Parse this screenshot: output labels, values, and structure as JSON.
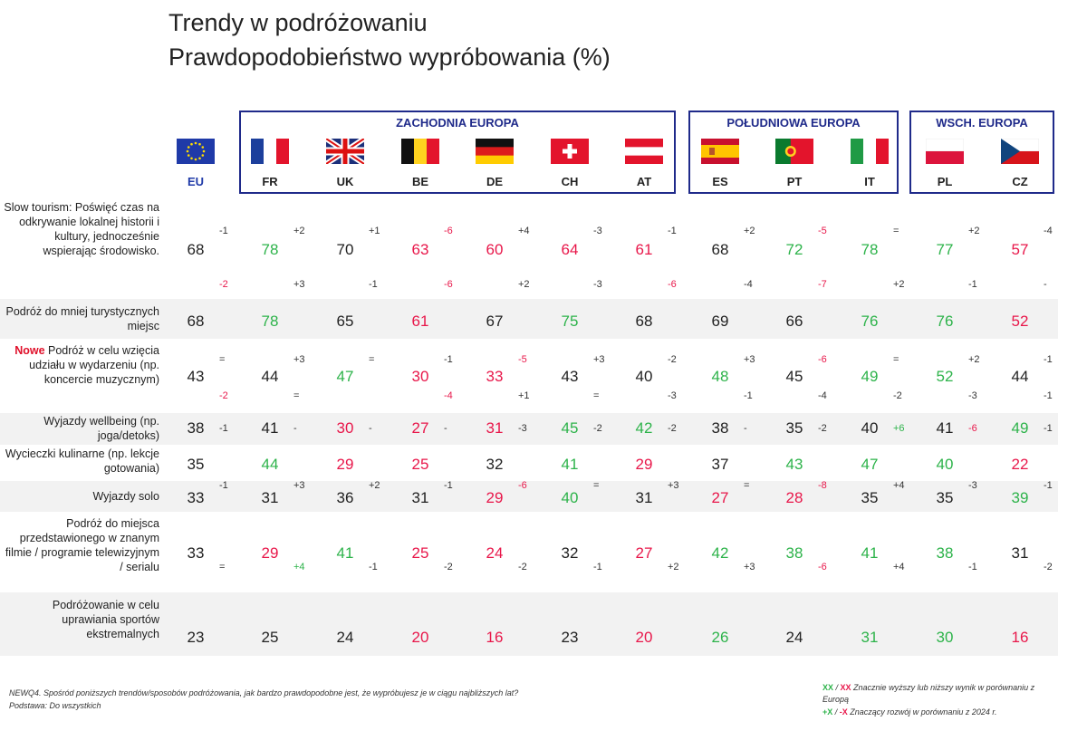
{
  "title": {
    "line1": "Trendy w podróżowaniu",
    "line2": "Prawdopodobieństwo wypróbowania (%)"
  },
  "regions": [
    {
      "label": "ZACHODNIA EUROPA"
    },
    {
      "label": "POŁUDNIOWA EUROPA"
    },
    {
      "label": "WSCH. EUROPA"
    }
  ],
  "colors": {
    "high": "#2db34a",
    "low": "#e8174a",
    "region": "#1f2a8a"
  },
  "chart_data": {
    "type": "table",
    "countries": [
      "EU",
      "FR",
      "UK",
      "BE",
      "DE",
      "CH",
      "AT",
      "ES",
      "PT",
      "IT",
      "PL",
      "CZ"
    ],
    "flags": [
      "eu-flag",
      "france-flag",
      "uk-flag",
      "belgium-flag",
      "germany-flag",
      "switzerland-flag",
      "austria-flag",
      "spain-flag",
      "portugal-flag",
      "italy-flag",
      "poland-flag",
      "czechia-flag"
    ],
    "rows": [
      {
        "label_new": "",
        "label": "Slow tourism: Poświęć czas na odkrywanie lokalnej historii i kultury, jednocześnie wspierając środowisko.",
        "values": [
          68,
          78,
          70,
          63,
          60,
          64,
          61,
          68,
          72,
          78,
          77,
          57
        ],
        "status": [
          "n",
          "h",
          "n",
          "l",
          "l",
          "l",
          "l",
          "n",
          "h",
          "h",
          "h",
          "l"
        ],
        "change_a": [
          "-1",
          "+2",
          "+1",
          "-6",
          "+4",
          "-3",
          "-1",
          "+2",
          "-5",
          "=",
          "+2",
          "-4"
        ],
        "change_a_status": [
          "n",
          "n",
          "n",
          "l",
          "n",
          "n",
          "n",
          "n",
          "l",
          "n",
          "n",
          "n"
        ],
        "change_b": [
          "-2",
          "+3",
          "-1",
          "-6",
          "+2",
          "-3",
          "-6",
          "-4",
          "-7",
          "+2",
          "-1",
          "-"
        ],
        "change_b_status": [
          "l",
          "n",
          "n",
          "l",
          "n",
          "n",
          "l",
          "n",
          "l",
          "n",
          "n",
          "n"
        ]
      },
      {
        "label_new": "",
        "label": "Podróż do mniej turystycznych miejsc",
        "values": [
          68,
          78,
          65,
          61,
          67,
          75,
          68,
          69,
          66,
          76,
          76,
          52
        ],
        "status": [
          "n",
          "h",
          "n",
          "l",
          "n",
          "h",
          "n",
          "n",
          "n",
          "h",
          "h",
          "l"
        ],
        "change_a": [
          "",
          "",
          "",
          "",
          "",
          "",
          "",
          "",
          "",
          "",
          "",
          ""
        ],
        "change_a_status": [
          "n",
          "n",
          "n",
          "n",
          "n",
          "n",
          "n",
          "n",
          "n",
          "n",
          "n",
          "n"
        ],
        "change_b": [
          "",
          "",
          "",
          "",
          "",
          "",
          "",
          "",
          "",
          "",
          "",
          ""
        ],
        "change_b_status": [
          "n",
          "n",
          "n",
          "n",
          "n",
          "n",
          "n",
          "n",
          "n",
          "n",
          "n",
          "n"
        ]
      },
      {
        "label_new": "Nowe",
        "label": " Podróż w celu wzięcia udziału w wydarzeniu (np. koncercie muzycznym)",
        "values": [
          43,
          44,
          47,
          30,
          33,
          43,
          40,
          48,
          45,
          49,
          52,
          44
        ],
        "status": [
          "n",
          "n",
          "h",
          "l",
          "l",
          "n",
          "n",
          "h",
          "n",
          "h",
          "h",
          "n"
        ],
        "change_a": [
          "=",
          "+3",
          "=",
          "-1",
          "-5",
          "+3",
          "-2",
          "+3",
          "-6",
          "=",
          "+2",
          "-1"
        ],
        "change_a_status": [
          "n",
          "n",
          "n",
          "n",
          "l",
          "n",
          "n",
          "n",
          "l",
          "n",
          "n",
          "n"
        ],
        "change_b": [
          "-2",
          "=",
          "",
          "-4",
          "+1",
          "=",
          "-3",
          "-1",
          "-4",
          "-2",
          "-3",
          "-1"
        ],
        "change_b_status": [
          "l",
          "n",
          "n",
          "l",
          "n",
          "n",
          "n",
          "n",
          "n",
          "n",
          "n",
          "n"
        ]
      },
      {
        "label_new": "",
        "label": "Wyjazdy wellbeing (np. joga/detoks)",
        "values": [
          38,
          41,
          30,
          27,
          31,
          45,
          42,
          38,
          35,
          40,
          41,
          49
        ],
        "status": [
          "n",
          "n",
          "l",
          "l",
          "l",
          "h",
          "h",
          "n",
          "n",
          "n",
          "n",
          "h"
        ],
        "change_a": [
          "-1",
          "-",
          "-",
          "-",
          "-3",
          "-2",
          "-2",
          "-",
          "-2",
          "+6",
          "-6",
          "-1"
        ],
        "change_a_status": [
          "n",
          "n",
          "n",
          "n",
          "n",
          "n",
          "n",
          "n",
          "n",
          "h",
          "l",
          "n"
        ],
        "change_b": [
          "",
          "",
          "",
          "",
          "",
          "",
          "",
          "",
          "",
          "",
          "",
          ""
        ],
        "change_b_status": [
          "n",
          "n",
          "n",
          "n",
          "n",
          "n",
          "n",
          "n",
          "n",
          "n",
          "n",
          "n"
        ]
      },
      {
        "label_new": "",
        "label": "Wycieczki kulinarne (np. lekcje gotowania)",
        "values": [
          35,
          44,
          29,
          25,
          32,
          41,
          29,
          37,
          43,
          47,
          40,
          22
        ],
        "status": [
          "n",
          "h",
          "l",
          "l",
          "n",
          "h",
          "l",
          "n",
          "h",
          "h",
          "h",
          "l"
        ],
        "change_a": [
          "",
          "",
          "",
          "",
          "",
          "",
          "",
          "",
          "",
          "",
          "",
          ""
        ],
        "change_a_status": [
          "n",
          "n",
          "n",
          "n",
          "n",
          "n",
          "n",
          "n",
          "n",
          "n",
          "n",
          "n"
        ],
        "change_b": [
          "",
          "",
          "",
          "",
          "",
          "",
          "",
          "",
          "",
          "",
          "",
          ""
        ],
        "change_b_status": [
          "n",
          "n",
          "n",
          "n",
          "n",
          "n",
          "n",
          "n",
          "n",
          "n",
          "n",
          "n"
        ]
      },
      {
        "label_new": "",
        "label": "Wyjazdy solo",
        "values": [
          33,
          31,
          36,
          31,
          29,
          40,
          31,
          27,
          28,
          35,
          35,
          39
        ],
        "status": [
          "n",
          "n",
          "n",
          "n",
          "l",
          "h",
          "n",
          "l",
          "l",
          "n",
          "n",
          "h"
        ],
        "change_a": [
          "-1",
          "+3",
          "+2",
          "-1",
          "-6",
          "=",
          "+3",
          "=",
          "-8",
          "+4",
          "-3",
          "-1"
        ],
        "change_a_status": [
          "n",
          "n",
          "n",
          "n",
          "l",
          "n",
          "n",
          "n",
          "l",
          "n",
          "n",
          "n"
        ],
        "change_b": [
          "",
          "",
          "",
          "",
          "",
          "",
          "",
          "",
          "",
          "",
          "",
          ""
        ],
        "change_b_status": [
          "n",
          "n",
          "n",
          "n",
          "n",
          "n",
          "n",
          "n",
          "n",
          "n",
          "n",
          "n"
        ]
      },
      {
        "label_new": "",
        "label": "Podróż do miejsca przedstawionego w znanym filmie / programie telewizyjnym / serialu",
        "values": [
          33,
          29,
          41,
          25,
          24,
          32,
          27,
          42,
          38,
          41,
          38,
          31
        ],
        "status": [
          "n",
          "l",
          "h",
          "l",
          "l",
          "n",
          "l",
          "h",
          "h",
          "h",
          "h",
          "n"
        ],
        "change_a": [
          "",
          "",
          "",
          "",
          "",
          "",
          "",
          "",
          "",
          "",
          "",
          ""
        ],
        "change_a_status": [
          "n",
          "n",
          "n",
          "n",
          "n",
          "n",
          "n",
          "n",
          "n",
          "n",
          "n",
          "n"
        ],
        "change_b": [
          "=",
          "+4",
          "-1",
          "-2",
          "-2",
          "-1",
          "+2",
          "+3",
          "-6",
          "+4",
          "-1",
          "-2"
        ],
        "change_b_status": [
          "n",
          "h",
          "n",
          "n",
          "n",
          "n",
          "n",
          "n",
          "l",
          "n",
          "n",
          "n"
        ]
      },
      {
        "label_new": "",
        "label": "Podróżowanie w celu uprawiania sportów ekstremalnych",
        "values": [
          23,
          25,
          24,
          20,
          16,
          23,
          20,
          26,
          24,
          31,
          30,
          16
        ],
        "status": [
          "n",
          "n",
          "n",
          "l",
          "l",
          "n",
          "l",
          "h",
          "n",
          "h",
          "h",
          "l"
        ],
        "change_a": [
          "",
          "",
          "",
          "",
          "",
          "",
          "",
          "",
          "",
          "",
          "",
          ""
        ],
        "change_a_status": [
          "n",
          "n",
          "n",
          "n",
          "n",
          "n",
          "n",
          "n",
          "n",
          "n",
          "n",
          "n"
        ],
        "change_b": [
          "",
          "",
          "",
          "",
          "",
          "",
          "",
          "",
          "",
          "",
          "",
          ""
        ],
        "change_b_status": [
          "n",
          "n",
          "n",
          "n",
          "n",
          "n",
          "n",
          "n",
          "n",
          "n",
          "n",
          "n"
        ]
      }
    ]
  },
  "footer": {
    "question": "NEWQ4. Spośród poniższych trendów/sposobów podróżowania, jak bardzo prawdopodobne jest, że wypróbujesz je w ciągu najbliższych lat?",
    "base": "Podstawa: Do wszystkich"
  },
  "legend": {
    "sig_green": "XX",
    "sig_sep": " / ",
    "sig_red": "XX",
    "sig_text": " Znacznie wyższy lub niższy wynik w porównaniu z Europą",
    "dev_green": "+X",
    "dev_sep": " / ",
    "dev_red": "-X",
    "dev_text": " Znaczący rozwój w porównaniu z 2024 r."
  }
}
